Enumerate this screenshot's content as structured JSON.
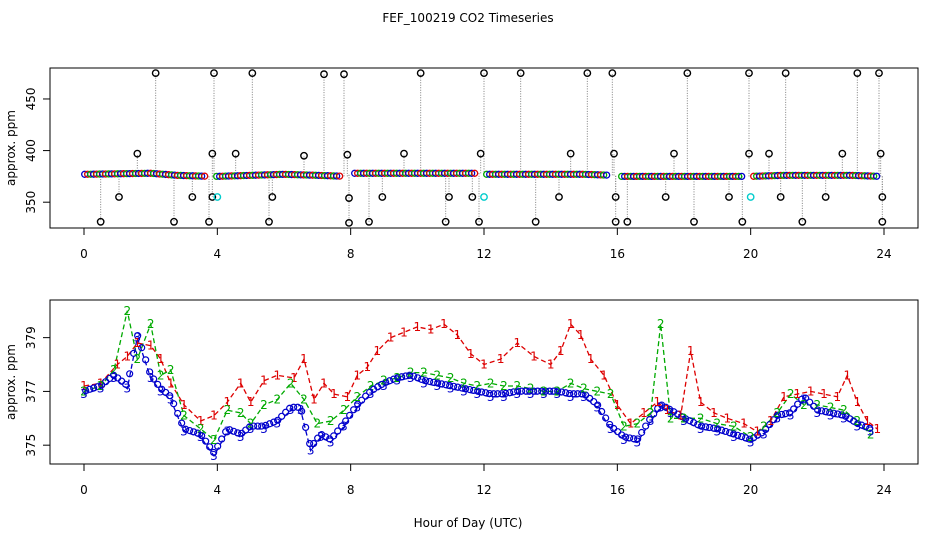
{
  "page": {
    "title": "FEF_100219  CO2 Timeseries",
    "xlabel": "Hour of Day (UTC)"
  },
  "colors": {
    "gray": "#808080",
    "red": "#dd0000",
    "green": "#00aa00",
    "blue": "#0000cc",
    "cyan": "#00cccc",
    "black": "#000000"
  },
  "chart_data": [
    {
      "type": "scatter",
      "title": "",
      "xlabel": "",
      "ylabel": "approx. ppm",
      "xlim": [
        0,
        24
      ],
      "ylim": [
        325,
        480
      ],
      "xticks": [
        "0",
        "4",
        "8",
        "12",
        "16",
        "20",
        "24"
      ],
      "yticks": [
        "350",
        "400",
        "450"
      ],
      "baseline": {
        "x": [
          0,
          1,
          2,
          2.8,
          3.8,
          4,
          5,
          6,
          7,
          7.9,
          8,
          9,
          10,
          11,
          11.9,
          12,
          13,
          14,
          15,
          15.9,
          16,
          17,
          18,
          19,
          19.9,
          20,
          21,
          22,
          23,
          23.9
        ],
        "y": [
          377,
          377.5,
          378,
          376,
          375,
          375,
          376,
          377,
          376,
          375,
          378,
          378,
          378,
          378,
          378,
          377,
          377,
          377,
          377,
          376,
          375,
          375,
          375,
          375,
          375,
          375,
          376,
          376,
          376,
          375
        ]
      },
      "spikes_high": {
        "x": [
          2.15,
          3.9,
          5.05,
          7.2,
          7.8,
          10.1,
          12.0,
          13.1,
          15.1,
          15.85,
          18.1,
          19.95,
          21.05,
          23.2,
          23.85
        ],
        "y": [
          475,
          475,
          475,
          474,
          474,
          475,
          475,
          475,
          475,
          475,
          475,
          475,
          475,
          475,
          475
        ]
      },
      "spikes_mid": {
        "x": [
          1.6,
          3.85,
          4.55,
          6.6,
          7.9,
          9.6,
          11.9,
          14.6,
          15.9,
          17.7,
          19.95,
          20.55,
          22.75,
          23.9
        ],
        "y": [
          397,
          397,
          397,
          395,
          396,
          397,
          397,
          397,
          397,
          397,
          397,
          397,
          397,
          397
        ]
      },
      "spikes_low": {
        "x": [
          1.05,
          3.25,
          3.85,
          5.65,
          7.95,
          8.95,
          10.95,
          11.65,
          14.25,
          15.95,
          17.45,
          19.35,
          20.9,
          22.25,
          23.95
        ],
        "y": [
          355,
          355,
          355,
          355,
          354,
          355,
          355,
          355,
          355,
          355,
          355,
          355,
          355,
          355,
          355
        ]
      },
      "spikes_bottom": {
        "x": [
          0.5,
          2.7,
          3.75,
          5.55,
          7.95,
          8.55,
          10.85,
          11.85,
          13.55,
          15.95,
          16.3,
          18.3,
          19.75,
          21.55,
          23.95
        ],
        "y": [
          331,
          331,
          331,
          331,
          330,
          331,
          331,
          331,
          331,
          331,
          331,
          331,
          331,
          331,
          331
        ]
      },
      "cyan_points": {
        "x": [
          4.0,
          12.0,
          20.0
        ],
        "y": [
          355,
          355,
          355
        ]
      }
    },
    {
      "type": "line",
      "title": "",
      "xlabel": "Hour of Day (UTC)",
      "ylabel": "approx. ppm",
      "xlim": [
        0,
        24
      ],
      "ylim": [
        374.3,
        380.4
      ],
      "xticks": [
        "0",
        "4",
        "8",
        "12",
        "16",
        "20",
        "24"
      ],
      "yticks": [
        "375",
        "377",
        "379"
      ],
      "series": [
        {
          "name": "1",
          "symbol": "1",
          "x": [
            0,
            0.5,
            1,
            1.3,
            1.6,
            2,
            2.3,
            2.6,
            3,
            3.5,
            3.9,
            4.3,
            4.7,
            5,
            5.4,
            5.8,
            6.3,
            6.6,
            6.9,
            7.2,
            7.5,
            7.9,
            8.2,
            8.5,
            8.8,
            9.2,
            9.6,
            10,
            10.4,
            10.8,
            11.2,
            11.6,
            12,
            12.5,
            13,
            13.5,
            14,
            14.3,
            14.6,
            14.9,
            15.2,
            15.6,
            16,
            16.4,
            16.8,
            17.2,
            17.5,
            17.9,
            18.2,
            18.5,
            18.9,
            19.3,
            19.8,
            20.2,
            20.6,
            21,
            21.4,
            21.8,
            22.2,
            22.6,
            22.9,
            23.2,
            23.5,
            23.8
          ],
          "y": [
            377.2,
            377.3,
            378.0,
            378.3,
            378.8,
            378.7,
            378.2,
            377.3,
            376.5,
            375.9,
            376.1,
            376.6,
            377.3,
            376.6,
            377.4,
            377.6,
            377.5,
            378.2,
            376.7,
            377.3,
            376.9,
            376.8,
            377.6,
            377.9,
            378.5,
            379.0,
            379.2,
            379.4,
            379.3,
            379.5,
            379.1,
            378.4,
            378.0,
            378.2,
            378.8,
            378.3,
            378.0,
            378.5,
            379.5,
            379.1,
            378.2,
            377.6,
            376.5,
            375.8,
            376.2,
            376.6,
            376.3,
            376.1,
            378.5,
            376.6,
            376.2,
            376.0,
            375.8,
            375.5,
            375.9,
            376.8,
            376.9,
            377.0,
            376.9,
            376.8,
            377.6,
            376.6,
            375.9,
            375.6
          ]
        },
        {
          "name": "2",
          "symbol": "2",
          "x": [
            0,
            0.5,
            0.9,
            1.3,
            1.6,
            2,
            2.3,
            2.6,
            3,
            3.5,
            3.9,
            4.3,
            4.7,
            5,
            5.4,
            5.8,
            6.2,
            6.6,
            7,
            7.4,
            7.8,
            8.2,
            8.6,
            9,
            9.4,
            9.8,
            10.2,
            10.6,
            11,
            11.4,
            11.8,
            12.2,
            12.6,
            13,
            13.4,
            13.8,
            14.2,
            14.6,
            15,
            15.4,
            15.8,
            16.2,
            16.6,
            17,
            17.3,
            17.6,
            18,
            18.5,
            19,
            19.5,
            20,
            20.4,
            20.8,
            21.2,
            21.6,
            22,
            22.4,
            22.8,
            23.2,
            23.6
          ],
          "y": [
            377.0,
            377.2,
            377.8,
            380.0,
            378.2,
            379.5,
            377.6,
            377.8,
            376.1,
            375.6,
            375.2,
            376.3,
            376.2,
            375.8,
            376.5,
            376.7,
            377.3,
            376.7,
            375.8,
            375.9,
            376.3,
            376.8,
            377.2,
            377.4,
            377.5,
            377.7,
            377.7,
            377.6,
            377.5,
            377.3,
            377.2,
            377.3,
            377.2,
            377.2,
            377.1,
            377.0,
            377.0,
            377.3,
            377.1,
            377.0,
            376.9,
            375.7,
            375.8,
            376.2,
            379.5,
            376.0,
            376.0,
            376.0,
            375.8,
            375.7,
            375.3,
            375.7,
            376.2,
            376.9,
            376.5,
            376.5,
            376.4,
            376.3,
            375.9,
            375.4
          ]
        },
        {
          "name": "3",
          "symbol": "3",
          "x": [
            0,
            0.5,
            0.9,
            1.3,
            1.6,
            2,
            2.3,
            2.6,
            3,
            3.5,
            3.9,
            4.3,
            4.7,
            5,
            5.4,
            5.8,
            6.2,
            6.5,
            6.8,
            7.1,
            7.4,
            7.8,
            8.2,
            8.6,
            9,
            9.4,
            9.8,
            10.2,
            10.6,
            11,
            11.4,
            11.8,
            12.2,
            12.6,
            13,
            13.4,
            13.8,
            14.2,
            14.6,
            15,
            15.4,
            15.8,
            16.2,
            16.6,
            17,
            17.3,
            17.6,
            18,
            18.5,
            19,
            19.5,
            20,
            20.4,
            20.8,
            21.2,
            21.6,
            22,
            22.4,
            22.8,
            23.2,
            23.6
          ],
          "y": [
            376.9,
            377.1,
            377.5,
            377.1,
            379.0,
            377.5,
            377.0,
            376.7,
            375.5,
            375.3,
            374.6,
            375.5,
            375.3,
            375.6,
            375.6,
            375.8,
            376.3,
            376.3,
            374.8,
            375.3,
            375.1,
            375.7,
            376.4,
            376.9,
            377.2,
            377.4,
            377.5,
            377.3,
            377.2,
            377.1,
            377.0,
            376.9,
            376.8,
            376.8,
            376.9,
            376.9,
            376.9,
            376.9,
            376.8,
            376.8,
            376.4,
            375.6,
            375.2,
            375.1,
            375.9,
            376.4,
            376.2,
            375.9,
            375.6,
            375.5,
            375.3,
            375.1,
            375.4,
            376.0,
            376.1,
            376.7,
            376.2,
            376.1,
            376.0,
            375.7,
            375.5
          ]
        }
      ]
    }
  ]
}
